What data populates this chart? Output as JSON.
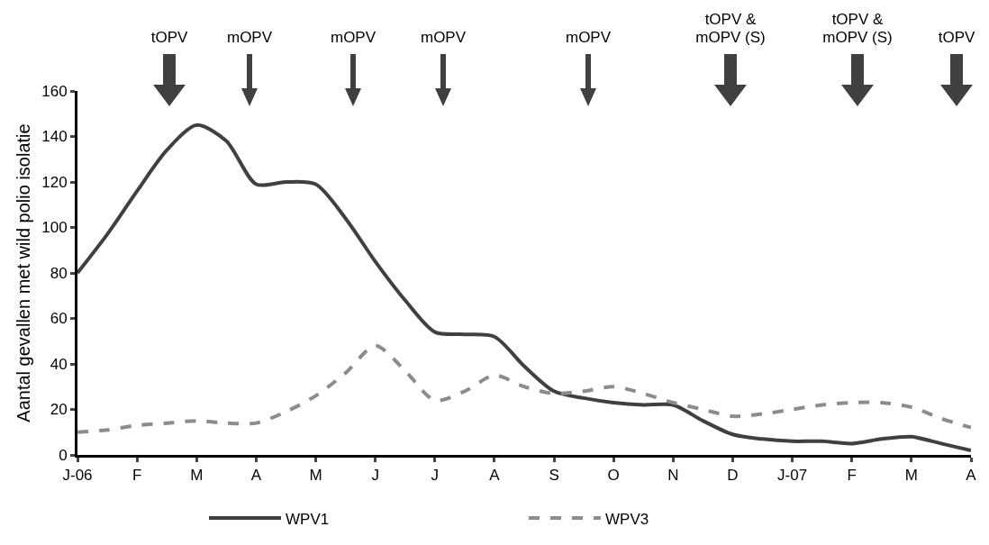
{
  "chart_data": {
    "type": "line",
    "ylabel": "Aantal gevallen met wild polio isolatie",
    "categories": [
      "J-06",
      null,
      "F",
      null,
      "M",
      null,
      "A",
      null,
      "M",
      null,
      "J",
      null,
      "J",
      null,
      "A",
      null,
      "S",
      null,
      "O",
      null,
      "N",
      null,
      "D",
      null,
      "J-07",
      null,
      "F",
      null,
      "M",
      null,
      "A"
    ],
    "ylim": [
      0,
      160
    ],
    "yticks": [
      0,
      20,
      40,
      60,
      80,
      100,
      120,
      140,
      160
    ],
    "series": [
      {
        "name": "WPV1",
        "color": "#404040",
        "line_style": "solid",
        "values": [
          80,
          97,
          116,
          134,
          145,
          138,
          119,
          120,
          119,
          104,
          85,
          68,
          54,
          53,
          52,
          39,
          28,
          25,
          23,
          22,
          22,
          15,
          9,
          7,
          6,
          6,
          5,
          7,
          8,
          5,
          2
        ]
      },
      {
        "name": "WPV3",
        "color": "#8c8c8c",
        "line_style": "dashed",
        "values": [
          10,
          11,
          13,
          14,
          15,
          14,
          14,
          19,
          26,
          36,
          48,
          37,
          24,
          28,
          35,
          30,
          27,
          28,
          30,
          27,
          23,
          20,
          17,
          18,
          20,
          22,
          23,
          23,
          21,
          16,
          12
        ]
      }
    ],
    "marker": "none",
    "grid": false,
    "legend": "bottom",
    "annotations": [
      "tOPV",
      "mOPV",
      "mOPV",
      "mOPV",
      "mOPV",
      "tOPV &\nmOPV (S)",
      "tOPV &\nmOPV (S)",
      "tOPV"
    ]
  }
}
